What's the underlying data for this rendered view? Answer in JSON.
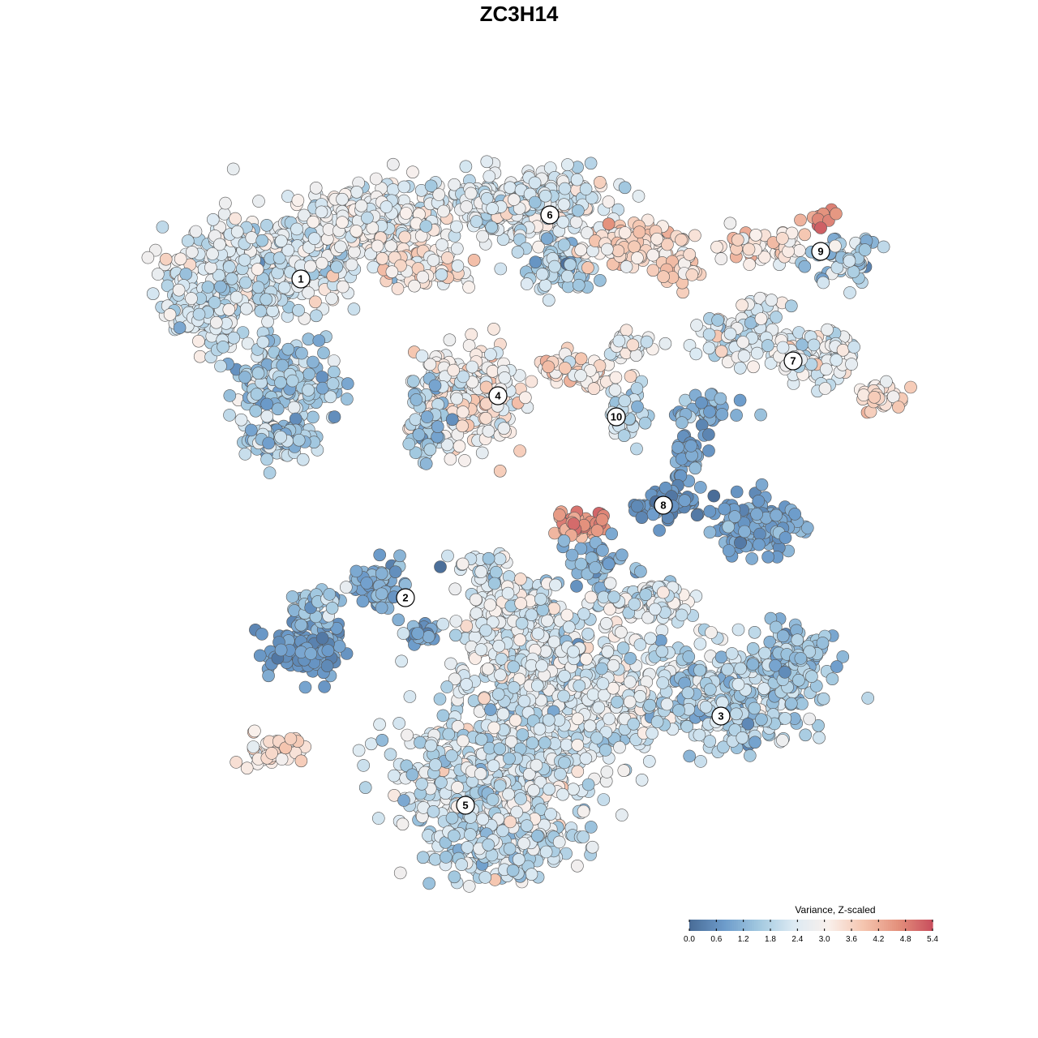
{
  "chart_data": {
    "type": "scatter",
    "title": "ZC3H14",
    "legend": {
      "title": "Variance, Z-scaled",
      "ticks": [
        "0.0",
        "0.6",
        "1.2",
        "1.8",
        "2.4",
        "3.0",
        "3.6",
        "4.2",
        "4.8",
        "5.4"
      ],
      "range": [
        0,
        5.4
      ],
      "colors": [
        "#4a6d98",
        "#6d9ccb",
        "#a3c9e0",
        "#dceaf3",
        "#f9f0ec",
        "#f5c6b0",
        "#e4927d",
        "#c9505e"
      ],
      "position": "bottom-right"
    },
    "cluster_labels": [
      "1",
      "2",
      "3",
      "4",
      "5",
      "6",
      "7",
      "8",
      "9",
      "10"
    ],
    "axes_visible": false,
    "grid": false
  }
}
